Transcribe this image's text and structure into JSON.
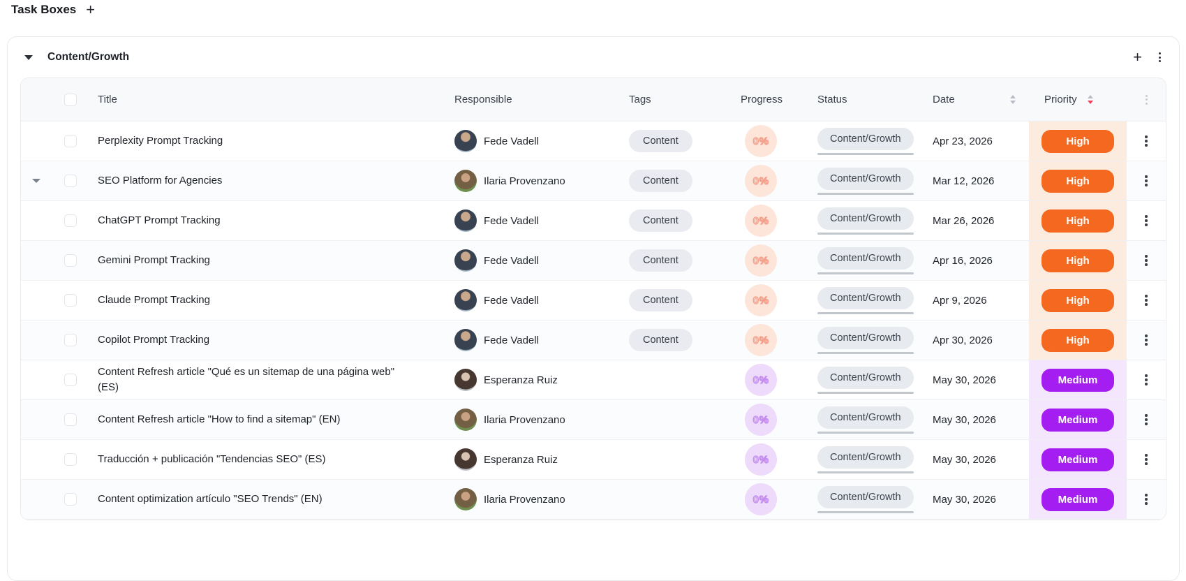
{
  "page": {
    "title": "Task Boxes",
    "add_icon": "+"
  },
  "group": {
    "name": "Content/Growth",
    "add_icon": "+"
  },
  "table": {
    "columns": {
      "title": "Title",
      "responsible": "Responsible",
      "tags": "Tags",
      "progress": "Progress",
      "status": "Status",
      "date": "Date",
      "priority": "Priority"
    },
    "sorting": {
      "date": "none",
      "priority": "desc"
    },
    "rows": [
      {
        "title": "Perplexity Prompt Tracking",
        "responsible": "Fede Vadell",
        "avatar": "fede",
        "tags": [
          "Content"
        ],
        "progress": "0%",
        "status": "Content/Growth",
        "date": "Apr 23, 2026",
        "priority": "High",
        "expandable": false
      },
      {
        "title": "SEO Platform for Agencies",
        "responsible": "Ilaria Provenzano",
        "avatar": "ilaria",
        "tags": [
          "Content"
        ],
        "progress": "0%",
        "status": "Content/Growth",
        "date": "Mar 12, 2026",
        "priority": "High",
        "expandable": true
      },
      {
        "title": "ChatGPT Prompt Tracking",
        "responsible": "Fede Vadell",
        "avatar": "fede",
        "tags": [
          "Content"
        ],
        "progress": "0%",
        "status": "Content/Growth",
        "date": "Mar 26, 2026",
        "priority": "High",
        "expandable": false
      },
      {
        "title": "Gemini Prompt Tracking",
        "responsible": "Fede Vadell",
        "avatar": "fede",
        "tags": [
          "Content"
        ],
        "progress": "0%",
        "status": "Content/Growth",
        "date": "Apr 16, 2026",
        "priority": "High",
        "expandable": false
      },
      {
        "title": "Claude Prompt Tracking",
        "responsible": "Fede Vadell",
        "avatar": "fede",
        "tags": [
          "Content"
        ],
        "progress": "0%",
        "status": "Content/Growth",
        "date": "Apr 9, 2026",
        "priority": "High",
        "expandable": false
      },
      {
        "title": "Copilot Prompt Tracking",
        "responsible": "Fede Vadell",
        "avatar": "fede",
        "tags": [
          "Content"
        ],
        "progress": "0%",
        "status": "Content/Growth",
        "date": "Apr 30, 2026",
        "priority": "High",
        "expandable": false
      },
      {
        "title": "Content Refresh article \"Qué es un sitemap de una página web\" (ES)",
        "responsible": "Esperanza Ruiz",
        "avatar": "esperanza",
        "tags": [],
        "progress": "0%",
        "status": "Content/Growth",
        "date": "May 30, 2026",
        "priority": "Medium",
        "expandable": false
      },
      {
        "title": "Content Refresh article \"How to find a sitemap\" (EN)",
        "responsible": "Ilaria Provenzano",
        "avatar": "ilaria",
        "tags": [],
        "progress": "0%",
        "status": "Content/Growth",
        "date": "May 30, 2026",
        "priority": "Medium",
        "expandable": false
      },
      {
        "title": "Traducción + publicación \"Tendencias SEO\" (ES)",
        "responsible": "Esperanza Ruiz",
        "avatar": "esperanza",
        "tags": [],
        "progress": "0%",
        "status": "Content/Growth",
        "date": "May 30, 2026",
        "priority": "Medium",
        "expandable": false
      },
      {
        "title": "Content optimization artículo \"SEO Trends\" (EN)",
        "responsible": "Ilaria Provenzano",
        "avatar": "ilaria",
        "tags": [],
        "progress": "0%",
        "status": "Content/Growth",
        "date": "May 30, 2026",
        "priority": "Medium",
        "expandable": false
      }
    ]
  },
  "priorities": {
    "High": {
      "pill": "#f4691f",
      "cell_bg": "#fcebdf",
      "progress_bg": "#fde5da",
      "progress_stroke": "#f5a08b"
    },
    "Medium": {
      "pill": "#a41ef2",
      "cell_bg": "#f4e6fd",
      "progress_bg": "#eedafb",
      "progress_stroke": "#c58df0"
    }
  },
  "colors": {
    "sort_active": "#f43f5e",
    "status_pill_bg": "#e7eaee",
    "tag_pill_bg": "#e9ebf0"
  }
}
